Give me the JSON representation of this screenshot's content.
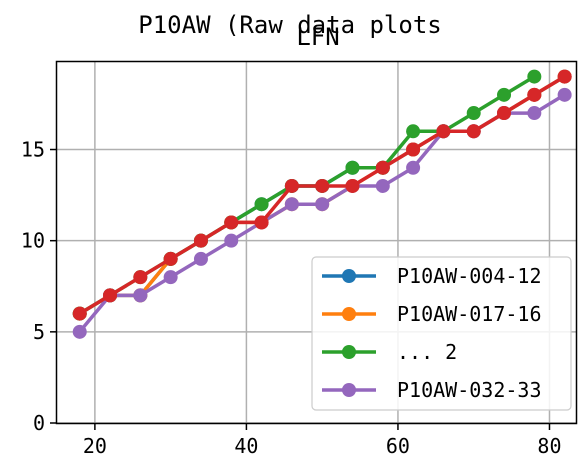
{
  "chart_data": {
    "type": "line",
    "title": "P10AW (Raw data plots",
    "subtitle": "LFN",
    "xlabel": "",
    "ylabel": "",
    "xlim": [
      15,
      83.5
    ],
    "ylim": [
      0,
      19.8
    ],
    "xticks": [
      20,
      40,
      60,
      80
    ],
    "yticks": [
      0,
      5,
      10,
      15
    ],
    "grid": true,
    "legend_position": "lower right",
    "series": [
      {
        "name": "P10AW-004-12",
        "color": "#1f77b4",
        "x": [
          18,
          22,
          26,
          30,
          34,
          38,
          42,
          46,
          50,
          54,
          58,
          62,
          66,
          70,
          74,
          78,
          82
        ],
        "y": [
          6,
          7,
          7,
          9,
          10,
          11,
          12,
          13,
          13,
          14,
          14,
          15,
          16,
          16,
          17,
          18,
          19
        ]
      },
      {
        "name": "P10AW-017-16",
        "color": "#ff7f0e",
        "x": [
          18,
          22,
          26,
          30,
          34,
          38,
          42,
          46,
          50,
          54,
          58,
          62,
          66,
          70,
          74,
          78,
          82
        ],
        "y": [
          6,
          7,
          7,
          9,
          10,
          11,
          11,
          12,
          12,
          13,
          14,
          15,
          16,
          16,
          17,
          18,
          19
        ]
      },
      {
        "name": "... 2",
        "color": "#2ca02c",
        "x": [
          18,
          22,
          26,
          30,
          34,
          38,
          42,
          46,
          50,
          54,
          58,
          62,
          66,
          70,
          74,
          78
        ],
        "y": [
          6,
          7,
          8,
          9,
          10,
          11,
          12,
          13,
          13,
          14,
          14,
          16,
          16,
          17,
          18,
          19
        ]
      },
      {
        "name": "P10AW-032-33",
        "color": "#9467bd",
        "x": [
          18,
          22,
          26,
          30,
          34,
          38,
          42,
          46,
          50,
          54,
          58,
          62,
          66,
          70,
          74,
          78,
          82
        ],
        "y": [
          5,
          7,
          7,
          8,
          9,
          10,
          11,
          12,
          12,
          13,
          13,
          14,
          16,
          16,
          17,
          17,
          18
        ]
      },
      {
        "name": "",
        "color": "#d62728",
        "x": [
          18,
          22,
          26,
          30,
          34,
          38,
          42,
          46,
          50,
          54,
          58,
          62,
          66,
          70,
          74,
          78,
          82
        ],
        "y": [
          6,
          7,
          8,
          9,
          10,
          11,
          11,
          13,
          13,
          13,
          14,
          15,
          16,
          16,
          17,
          18,
          19
        ]
      }
    ],
    "legend_entries": [
      0,
      1,
      2,
      3
    ]
  }
}
